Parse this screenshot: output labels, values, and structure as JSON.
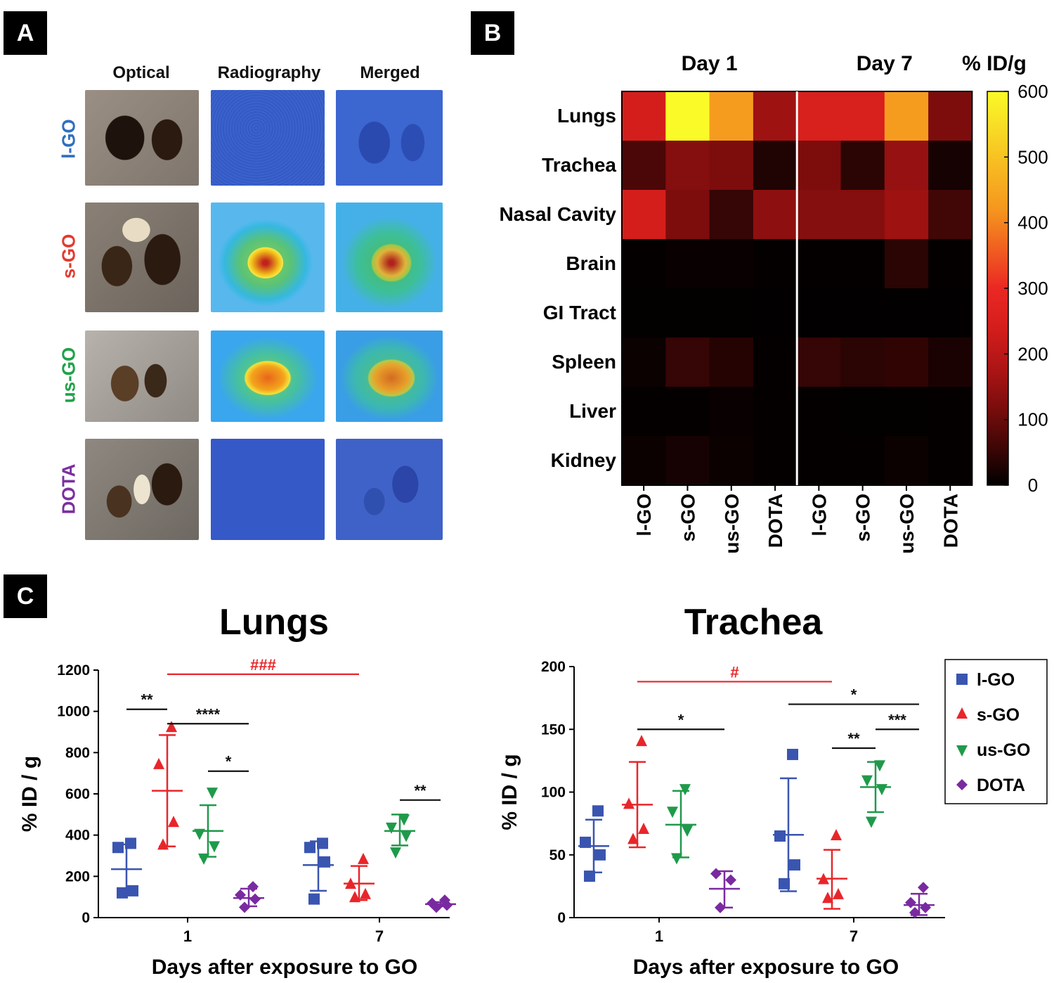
{
  "panels": {
    "a": "A",
    "b": "B",
    "c": "C"
  },
  "panel_a": {
    "columns": [
      "Optical",
      "Radiography",
      "Merged"
    ],
    "rows": [
      {
        "label": "l-GO",
        "color": "#2f6fbf"
      },
      {
        "label": "s-GO",
        "color": "#e53a2f"
      },
      {
        "label": "us-GO",
        "color": "#1fa24a"
      },
      {
        "label": "DOTA",
        "color": "#7b2fa0"
      }
    ]
  },
  "chart_data": [
    {
      "type": "heatmap",
      "title_groups": [
        "Day 1",
        "Day 7"
      ],
      "colorbar_title": "% ID/g",
      "colorbar_ticks": [
        "600",
        "500",
        "400",
        "300",
        "200",
        "100",
        "0"
      ],
      "colorbar_range": [
        0,
        600
      ],
      "rows": [
        "Lungs",
        "Trachea",
        "Nasal Cavity",
        "Brain",
        "GI Tract",
        "Spleen",
        "Liver",
        "Kidney"
      ],
      "columns": [
        "l-GO",
        "s-GO",
        "us-GO",
        "DOTA",
        "l-GO",
        "s-GO",
        "us-GO",
        "DOTA"
      ],
      "values": [
        [
          240,
          600,
          430,
          160,
          250,
          250,
          430,
          120
        ],
        [
          70,
          130,
          120,
          30,
          120,
          40,
          150,
          20
        ],
        [
          240,
          120,
          50,
          140,
          130,
          130,
          160,
          60
        ],
        [
          5,
          8,
          8,
          5,
          5,
          5,
          40,
          5
        ],
        [
          3,
          3,
          3,
          2,
          2,
          2,
          2,
          2
        ],
        [
          10,
          50,
          35,
          5,
          50,
          40,
          45,
          25
        ],
        [
          5,
          5,
          8,
          4,
          5,
          3,
          3,
          4
        ],
        [
          10,
          20,
          10,
          5,
          5,
          5,
          10,
          5
        ]
      ]
    },
    {
      "type": "scatter",
      "title": "Lungs",
      "xlabel": "Days after exposure to GO",
      "ylabel": "% ID / g",
      "ylim": [
        0,
        1200
      ],
      "yticks": [
        "0",
        "200",
        "400",
        "600",
        "800",
        "1000",
        "1200"
      ],
      "groups": [
        "1",
        "7"
      ],
      "series": [
        {
          "name": "l-GO",
          "marker": "square",
          "color": "#3a55b0",
          "day1": [
            120,
            130,
            340,
            360
          ],
          "mean1": 235,
          "sd1": [
            115,
            355
          ],
          "day7": [
            90,
            270,
            340,
            360
          ],
          "mean7": 255,
          "sd7": [
            130,
            370
          ]
        },
        {
          "name": "s-GO",
          "marker": "triangle",
          "color": "#e8262a",
          "day1": [
            350,
            460,
            740,
            920
          ],
          "mean1": 615,
          "sd1": [
            345,
            885
          ],
          "day7": [
            95,
            110,
            160,
            280
          ],
          "mean7": 165,
          "sd7": [
            85,
            250
          ]
        },
        {
          "name": "us-GO",
          "marker": "triangle-down",
          "color": "#1f9a4a",
          "day1": [
            290,
            350,
            410,
            610
          ],
          "mean1": 420,
          "sd1": [
            295,
            545
          ],
          "day7": [
            320,
            400,
            440,
            480
          ],
          "mean7": 420,
          "sd7": [
            350,
            500
          ]
        },
        {
          "name": "DOTA",
          "marker": "diamond",
          "color": "#7a2aa0",
          "day1": [
            50,
            90,
            110,
            150
          ],
          "mean1": 95,
          "sd1": [
            55,
            140
          ],
          "day7": [
            50,
            60,
            70,
            85
          ],
          "mean7": 65,
          "sd7": [
            55,
            75
          ]
        }
      ],
      "annotations": [
        {
          "text": "**",
          "color": "#111",
          "from": [
            "day1",
            "l-GO"
          ],
          "to": [
            "day1",
            "s-GO"
          ],
          "y": 1010
        },
        {
          "text": "****",
          "color": "#111",
          "from": [
            "day1",
            "s-GO"
          ],
          "to": [
            "day1",
            "DOTA"
          ],
          "y": 940
        },
        {
          "text": "*",
          "color": "#111",
          "from": [
            "day1",
            "us-GO"
          ],
          "to": [
            "day1",
            "DOTA"
          ],
          "y": 710
        },
        {
          "text": "###",
          "color": "#e8262a",
          "from": [
            "day1",
            "s-GO"
          ],
          "to": [
            "day7",
            "s-GO"
          ],
          "y": 1180
        },
        {
          "text": "**",
          "color": "#111",
          "from": [
            "day7",
            "us-GO"
          ],
          "to": [
            "day7",
            "DOTA"
          ],
          "y": 570
        }
      ]
    },
    {
      "type": "scatter",
      "title": "Trachea",
      "xlabel": "Days after exposure to GO",
      "ylabel": "% ID / g",
      "ylim": [
        0,
        200
      ],
      "yticks": [
        "0",
        "50",
        "100",
        "150",
        "200"
      ],
      "groups": [
        "1",
        "7"
      ],
      "series": [
        {
          "name": "l-GO",
          "marker": "square",
          "color": "#3a55b0",
          "day1": [
            33,
            50,
            60,
            85
          ],
          "mean1": 57,
          "sd1": [
            36,
            78
          ],
          "day7": [
            27,
            42,
            65,
            130
          ],
          "mean7": 66,
          "sd7": [
            21,
            111
          ]
        },
        {
          "name": "s-GO",
          "marker": "triangle",
          "color": "#e8262a",
          "day1": [
            62,
            70,
            90,
            140
          ],
          "mean1": 90,
          "sd1": [
            56,
            124
          ],
          "day7": [
            15,
            18,
            30,
            65
          ],
          "mean7": 31,
          "sd7": [
            7,
            54
          ]
        },
        {
          "name": "us-GO",
          "marker": "triangle-down",
          "color": "#1f9a4a",
          "day1": [
            48,
            70,
            85,
            103
          ],
          "mean1": 74,
          "sd1": [
            48,
            101
          ],
          "day7": [
            77,
            103,
            110,
            122
          ],
          "mean7": 104,
          "sd7": [
            84,
            124
          ]
        },
        {
          "name": "DOTA",
          "marker": "diamond",
          "color": "#7a2aa0",
          "day1": [
            8,
            30,
            35
          ],
          "mean1": 23,
          "sd1": [
            8,
            37
          ],
          "day7": [
            4,
            8,
            12,
            24
          ],
          "mean7": 10,
          "sd7": [
            2,
            19
          ]
        }
      ],
      "annotations": [
        {
          "text": "#",
          "color": "#e8262a",
          "from": [
            "day1",
            "s-GO"
          ],
          "to": [
            "day7",
            "s-GO"
          ],
          "y": 188
        },
        {
          "text": "*",
          "color": "#111",
          "from": [
            "day1",
            "s-GO"
          ],
          "to": [
            "day1",
            "DOTA"
          ],
          "y": 150
        },
        {
          "text": "*",
          "color": "#111",
          "from": [
            "day7",
            "l-GO"
          ],
          "to": [
            "day7",
            "DOTA"
          ],
          "y": 170
        },
        {
          "text": "**",
          "color": "#111",
          "from": [
            "day7",
            "s-GO"
          ],
          "to": [
            "day7",
            "us-GO"
          ],
          "y": 135
        },
        {
          "text": "***",
          "color": "#111",
          "from": [
            "day7",
            "us-GO"
          ],
          "to": [
            "day7",
            "DOTA"
          ],
          "y": 150
        }
      ],
      "legend_position": "top-right"
    }
  ]
}
